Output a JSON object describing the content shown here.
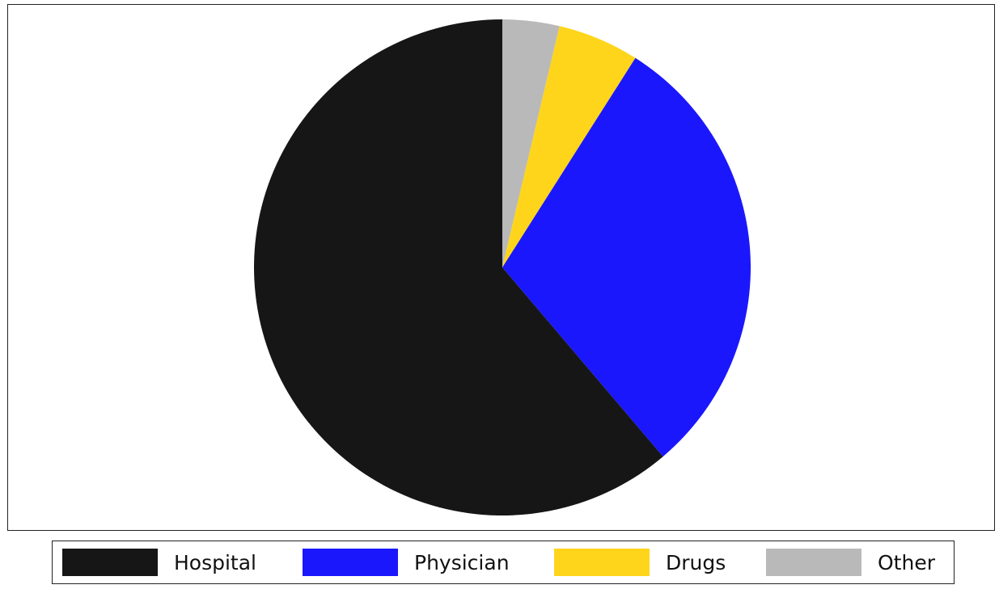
{
  "chart_data": {
    "type": "pie",
    "title": "",
    "start_angle_deg": 0,
    "direction": "clockwise",
    "slices": [
      {
        "label": "Other",
        "value": 3.7,
        "color": "#b9b9b9"
      },
      {
        "label": "Drugs",
        "value": 5.3,
        "color": "#fed51b"
      },
      {
        "label": "Physician",
        "value": 29.8,
        "color": "#1a17fc"
      },
      {
        "label": "Hospital",
        "value": 61.2,
        "color": "#161616"
      }
    ],
    "legend": {
      "placement": "bottom",
      "entries": [
        {
          "label": "Hospital",
          "color": "#161616"
        },
        {
          "label": "Physician",
          "color": "#1a17fc"
        },
        {
          "label": "Drugs",
          "color": "#fed51b"
        },
        {
          "label": "Other",
          "color": "#b9b9b9"
        }
      ]
    }
  }
}
